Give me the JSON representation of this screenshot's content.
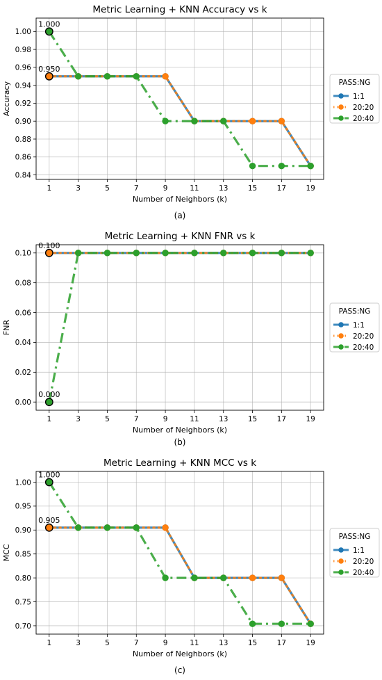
{
  "chart_data": [
    {
      "type": "line",
      "title": "Metric Learning + KNN Accuracy vs k",
      "xlabel": "Number of Neighbors (k)",
      "ylabel": "Accuracy",
      "x": [
        1,
        3,
        5,
        7,
        9,
        11,
        13,
        15,
        17,
        19
      ],
      "ylim": [
        0.835,
        1.015
      ],
      "yticks": [
        0.84,
        0.86,
        0.88,
        0.9,
        0.92,
        0.94,
        0.96,
        0.98,
        1.0
      ],
      "ytick_labels": [
        "0.84",
        "0.86",
        "0.88",
        "0.90",
        "0.92",
        "0.94",
        "0.96",
        "0.98",
        "1.00"
      ],
      "grid": true,
      "legend_title": "PASS:NG",
      "legend_position": "right",
      "series": [
        {
          "name": "1:1",
          "color": "#1f77b4",
          "style": "solid",
          "values": [
            0.95,
            0.95,
            0.95,
            0.95,
            0.95,
            0.9,
            0.9,
            0.9,
            0.9,
            0.85
          ]
        },
        {
          "name": "20:20",
          "color": "#ff7f0e",
          "style": "dotted",
          "values": [
            0.95,
            0.95,
            0.95,
            0.95,
            0.95,
            0.9,
            0.9,
            0.9,
            0.9,
            0.85
          ]
        },
        {
          "name": "20:40",
          "color": "#2ca02c",
          "style": "dashdot",
          "values": [
            1.0,
            0.95,
            0.95,
            0.95,
            0.9,
            0.9,
            0.9,
            0.85,
            0.85,
            0.85
          ]
        }
      ],
      "annotations": [
        {
          "x": 1,
          "y": 1.0,
          "text": "1.000"
        },
        {
          "x": 1,
          "y": 0.95,
          "text": "0.950"
        }
      ],
      "caption": "(a)"
    },
    {
      "type": "line",
      "title": "Metric Learning + KNN FNR vs k",
      "xlabel": "Number of Neighbors (k)",
      "ylabel": "FNR",
      "x": [
        1,
        3,
        5,
        7,
        9,
        11,
        13,
        15,
        17,
        19
      ],
      "ylim": [
        -0.0055,
        0.1055
      ],
      "yticks": [
        0.0,
        0.02,
        0.04,
        0.06,
        0.08,
        0.1
      ],
      "ytick_labels": [
        "0.00",
        "0.02",
        "0.04",
        "0.06",
        "0.08",
        "0.10"
      ],
      "grid": true,
      "legend_title": "PASS:NG",
      "legend_position": "right",
      "series": [
        {
          "name": "1:1",
          "color": "#1f77b4",
          "style": "solid",
          "values": [
            0.1,
            0.1,
            0.1,
            0.1,
            0.1,
            0.1,
            0.1,
            0.1,
            0.1,
            0.1
          ]
        },
        {
          "name": "20:20",
          "color": "#ff7f0e",
          "style": "dotted",
          "values": [
            0.1,
            0.1,
            0.1,
            0.1,
            0.1,
            0.1,
            0.1,
            0.1,
            0.1,
            0.1
          ]
        },
        {
          "name": "20:40",
          "color": "#2ca02c",
          "style": "dashdot",
          "values": [
            0.0,
            0.1,
            0.1,
            0.1,
            0.1,
            0.1,
            0.1,
            0.1,
            0.1,
            0.1
          ]
        }
      ],
      "annotations": [
        {
          "x": 1,
          "y": 0.1,
          "text": "0.100"
        },
        {
          "x": 1,
          "y": 0.0,
          "text": "0.000"
        }
      ],
      "caption": "(b)"
    },
    {
      "type": "line",
      "title": "Metric Learning + KNN MCC vs k",
      "xlabel": "Number of Neighbors (k)",
      "ylabel": "MCC",
      "x": [
        1,
        3,
        5,
        7,
        9,
        11,
        13,
        15,
        17,
        19
      ],
      "ylim": [
        0.6825,
        1.0225
      ],
      "yticks": [
        0.7,
        0.75,
        0.8,
        0.85,
        0.9,
        0.95,
        1.0
      ],
      "ytick_labels": [
        "0.70",
        "0.75",
        "0.80",
        "0.85",
        "0.90",
        "0.95",
        "1.00"
      ],
      "grid": true,
      "legend_title": "PASS:NG",
      "legend_position": "right",
      "series": [
        {
          "name": "1:1",
          "color": "#1f77b4",
          "style": "solid",
          "values": [
            0.905,
            0.905,
            0.905,
            0.905,
            0.905,
            0.8,
            0.8,
            0.8,
            0.8,
            0.704
          ]
        },
        {
          "name": "20:20",
          "color": "#ff7f0e",
          "style": "dotted",
          "values": [
            0.905,
            0.905,
            0.905,
            0.905,
            0.905,
            0.8,
            0.8,
            0.8,
            0.8,
            0.704
          ]
        },
        {
          "name": "20:40",
          "color": "#2ca02c",
          "style": "dashdot",
          "values": [
            1.0,
            0.905,
            0.905,
            0.905,
            0.8,
            0.8,
            0.8,
            0.704,
            0.704,
            0.704
          ]
        }
      ],
      "annotations": [
        {
          "x": 1,
          "y": 1.0,
          "text": "1.000"
        },
        {
          "x": 1,
          "y": 0.905,
          "text": "0.905"
        }
      ],
      "caption": "(c)"
    }
  ]
}
